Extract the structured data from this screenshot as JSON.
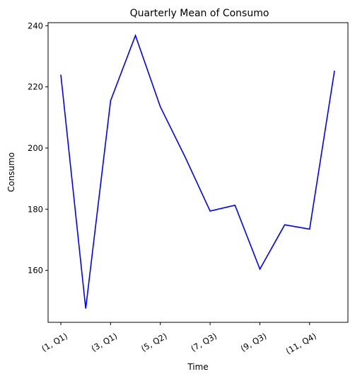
{
  "chart_data": {
    "type": "line",
    "title": "Quarterly Mean of Consumo",
    "xlabel": "Time",
    "ylabel": "Consumo",
    "x": [
      "(1, Q1)",
      "(2, Q1)",
      "(3, Q1)",
      "(4, Q2)",
      "(5, Q2)",
      "(6, Q2)",
      "(7, Q3)",
      "(8, Q3)",
      "(9, Q3)",
      "(10, Q4)",
      "(11, Q4)",
      "(12, Q4)"
    ],
    "x_tick_labels": [
      "(1, Q1)",
      "(3, Q1)",
      "(5, Q2)",
      "(7, Q3)",
      "(9, Q3)",
      "(11, Q4)"
    ],
    "y_ticks": [
      160,
      180,
      200,
      220,
      240
    ],
    "ylim": [
      143,
      241
    ],
    "grid": false,
    "series": [
      {
        "color": "#0000ff",
        "values": [
          224.0,
          147.5,
          215.5,
          236.8,
          213.5,
          197.0,
          179.4,
          181.3,
          160.4,
          174.9,
          173.5,
          225.3
        ]
      }
    ]
  }
}
